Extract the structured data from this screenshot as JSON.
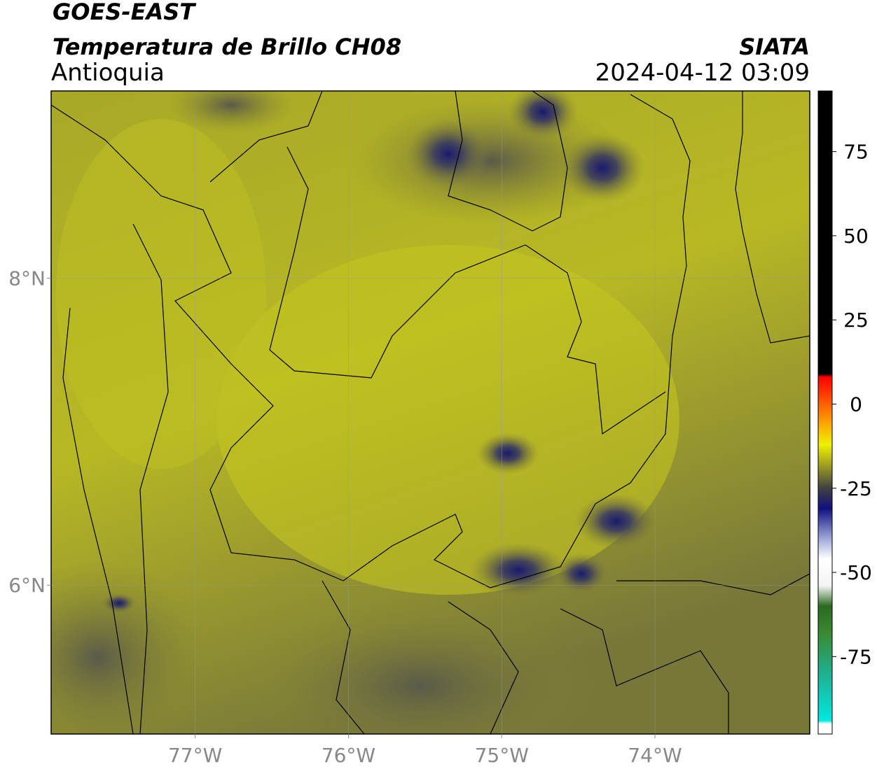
{
  "chart_data": {
    "type": "map",
    "title": "GOES-EAST",
    "subtitle": "Temperatura de Brillo CH08",
    "source": "SIATA",
    "region": "Antioquia",
    "datetime": "2024-04-12 03:09",
    "xlim": [
      -77.94,
      -72.99
    ],
    "ylim": [
      5.03,
      9.22
    ],
    "xticks": [
      {
        "value": -77,
        "label": "77°W"
      },
      {
        "value": -76,
        "label": "76°W"
      },
      {
        "value": -75,
        "label": "75°W"
      },
      {
        "value": -74,
        "label": "74°W"
      }
    ],
    "yticks": [
      {
        "value": 6,
        "label": "6°N"
      },
      {
        "value": 8,
        "label": "8°N"
      }
    ],
    "grid": true,
    "colorbar": {
      "lim": [
        -98,
        93
      ],
      "ticks": [
        75,
        50,
        25,
        0,
        -25,
        -50,
        -75
      ],
      "stops": [
        {
          "value": -98,
          "color": "#ffffff"
        },
        {
          "value": -95,
          "color": "#ffffff"
        },
        {
          "value": -94,
          "color": "#00e8e0"
        },
        {
          "value": -80,
          "color": "#20b090"
        },
        {
          "value": -68,
          "color": "#3a8a30"
        },
        {
          "value": -60,
          "color": "#2a6a20"
        },
        {
          "value": -54,
          "color": "#f4f4f4"
        },
        {
          "value": -46,
          "color": "#ffffff"
        },
        {
          "value": -40,
          "color": "#a0a8d8"
        },
        {
          "value": -31,
          "color": "#101080"
        },
        {
          "value": -25,
          "color": "#404040"
        },
        {
          "value": -18,
          "color": "#a0a020"
        },
        {
          "value": -12,
          "color": "#f0f000"
        },
        {
          "value": -4,
          "color": "#ff9000"
        },
        {
          "value": 8,
          "color": "#ff0000"
        },
        {
          "value": 9,
          "color": "#000000"
        },
        {
          "value": 93,
          "color": "#000000"
        }
      ]
    }
  }
}
